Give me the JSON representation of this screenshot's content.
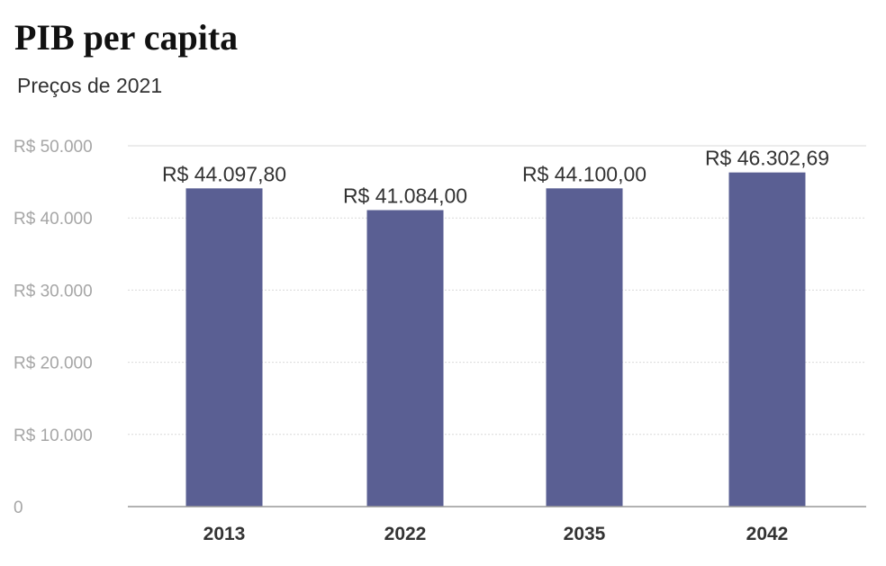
{
  "chart_data": {
    "type": "bar",
    "title": "PIB per capita",
    "subtitle": "Preços de 2021",
    "categories": [
      "2013",
      "2022",
      "2035",
      "2042"
    ],
    "values": [
      44097.8,
      41084.0,
      44100.0,
      46302.69
    ],
    "data_labels": [
      "R$ 44.097,80",
      "R$ 41.084,00",
      "R$ 44.100,00",
      "R$ 46.302,69"
    ],
    "yticks": [
      0,
      10000,
      20000,
      30000,
      40000,
      50000
    ],
    "ytick_labels": [
      "0",
      "R$ 10.000",
      "R$ 20.000",
      "R$ 30.000",
      "R$ 40.000",
      "R$ 50.000"
    ],
    "ylim": [
      0,
      50000
    ],
    "grid": true,
    "xlabel": "",
    "ylabel": "",
    "colors": {
      "bar": "#5a5f93",
      "grid": "#d9d9d9",
      "tick_label": "#a6a6a6"
    }
  }
}
